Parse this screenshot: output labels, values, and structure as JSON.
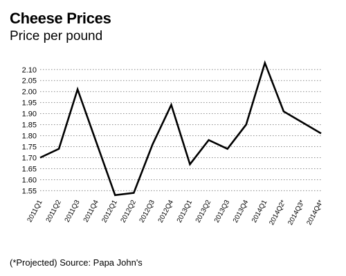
{
  "chart_data": {
    "type": "line",
    "title": "Cheese Prices",
    "subtitle": "Price per pound",
    "xlabel": "",
    "ylabel": "",
    "categories": [
      "2011Q1",
      "2011Q2",
      "2011Q3",
      "2011Q4",
      "2012Q1",
      "2012Q2",
      "2012Q3",
      "2012Q4",
      "2013Q1",
      "2013Q2",
      "2013Q3",
      "2013Q4",
      "2014Q1",
      "2014Q2*",
      "2014Q3*",
      "2014Q4*"
    ],
    "values": [
      1.7,
      1.74,
      2.01,
      1.77,
      1.53,
      1.54,
      1.76,
      1.94,
      1.67,
      1.78,
      1.74,
      1.85,
      2.13,
      1.91,
      1.86,
      1.81
    ],
    "ylim": [
      1.52,
      2.14
    ],
    "yticks": [
      "1.55",
      "1.60",
      "1.65",
      "1.70",
      "1.75",
      "1.80",
      "1.85",
      "1.90",
      "1.95",
      "2.00",
      "2.05",
      "2.10"
    ],
    "grid": "horizontal dotted",
    "legend": "none",
    "line_color": "#000000",
    "grid_color": "#888888"
  },
  "footer": {
    "source": "(*Projected) Source: Papa John's"
  }
}
